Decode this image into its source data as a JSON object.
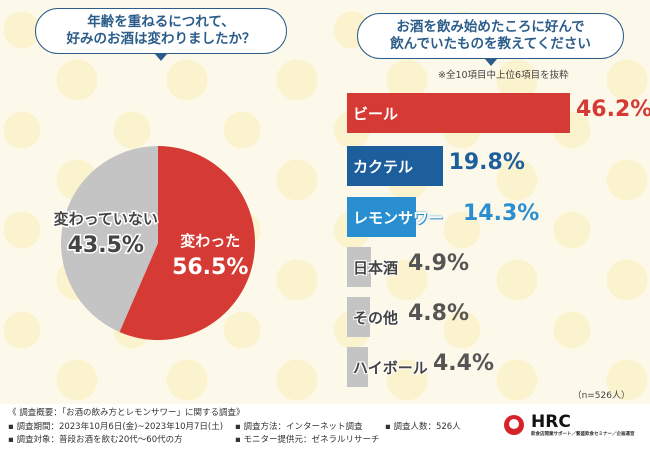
{
  "left_question": [
    "年齢を重ねるにつれて、",
    "好みのお酒は変わりましたか？"
  ],
  "right_question": [
    "お酒を飲み始めたころに好んで",
    "飲んでいたものを教えてください"
  ],
  "note": "※全10項目中上位6項目を抜粋",
  "sample": "（n=526人）",
  "colors": {
    "red": "#d63a34",
    "navy": "#1d5e9c",
    "blue": "#2a8fd0",
    "gray": "#c4c4c4"
  },
  "chart_data": [
    {
      "type": "pie",
      "title": "年齢を重ねるにつれて、好みのお酒は変わりましたか？",
      "slices": [
        {
          "label": "変わった",
          "value": 56.5,
          "display": "56.5%",
          "color": "#d63a34"
        },
        {
          "label": "変わっていない",
          "value": 43.5,
          "display": "43.5%",
          "color": "#c4c4c4"
        }
      ]
    },
    {
      "type": "bar",
      "title": "お酒を飲み始めたころに好んで飲んでいたものを教えてください",
      "categories": [
        "ビール",
        "カクテル",
        "レモンサワー",
        "日本酒",
        "その他",
        "ハイボール"
      ],
      "values": [
        46.2,
        19.8,
        14.3,
        4.9,
        4.8,
        4.4
      ],
      "labels": [
        "46.2%",
        "19.8%",
        "14.3%",
        "4.9%",
        "4.8%",
        "4.4%"
      ],
      "colors": [
        "#d63a34",
        "#1d5e9c",
        "#2a8fd0",
        "#c4c4c4",
        "#c4c4c4",
        "#c4c4c4"
      ],
      "unit": "%"
    }
  ],
  "footer": {
    "title": "《 調査概要：「お酒の飲み方とレモンサワー」に関する調査》",
    "period": "▪ 調査期間：2023年10月6日(金)~2023年10月7日(土)",
    "target": "▪ 調査対象：普段お酒を飲む20代～60代の方",
    "method": "▪ 調査方法：インターネット調査",
    "provider": "▪ モニター提供元：ゼネラルリサーチ",
    "count": "▪ 調査人数：526人",
    "logo": "HRC",
    "logo_sub": "飲食店開業サポート／繁盛飲食セミナー／企画運営"
  }
}
